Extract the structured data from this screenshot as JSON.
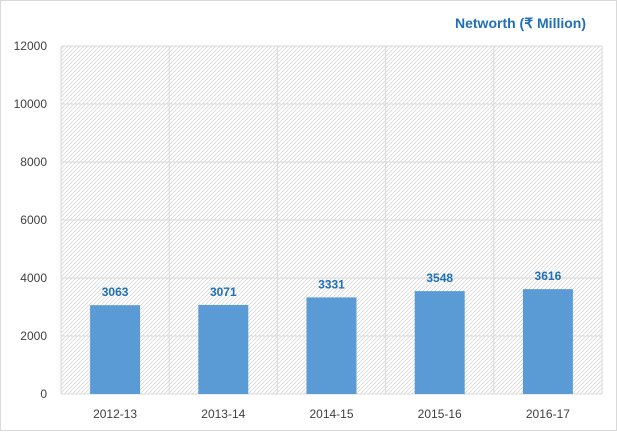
{
  "colors": {
    "bar": "#5b9bd5",
    "label": "#1f6fb8",
    "title": "#1f6fb8",
    "grid": "#d9d9d9",
    "hatch": "#d0d0d0"
  },
  "chart_data": {
    "type": "bar",
    "title": "Networth (₹ Million)",
    "xlabel": "",
    "ylabel": "",
    "categories": [
      "2012-13",
      "2013-14",
      "2014-15",
      "2015-16",
      "2016-17"
    ],
    "values": [
      3063,
      3071,
      3331,
      3548,
      3616
    ],
    "ylim": [
      0,
      12000
    ],
    "yticks": [
      0,
      2000,
      4000,
      6000,
      8000,
      10000,
      12000
    ],
    "grid": true,
    "data_labels": true,
    "legend": "none"
  }
}
